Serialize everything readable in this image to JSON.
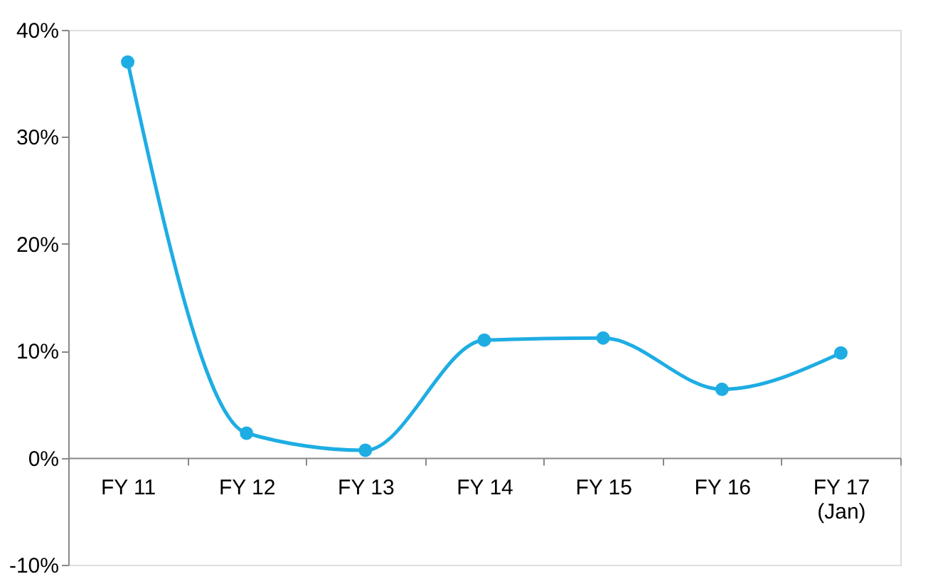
{
  "chart_data": {
    "type": "line",
    "categories": [
      "FY 11",
      "FY 12",
      "FY 13",
      "FY 14",
      "FY 15",
      "FY 16",
      "FY 17 (Jan)"
    ],
    "series": [
      {
        "color": "#1eade3",
        "values": [
          37,
          2.3,
          0.7,
          11,
          11.2,
          6.4,
          9.8
        ]
      }
    ],
    "ylim": [
      -10,
      40
    ],
    "yticks": [
      {
        "value": -10,
        "label": "-10%"
      },
      {
        "value": 0,
        "label": "0%"
      },
      {
        "value": 10,
        "label": "10%"
      },
      {
        "value": 20,
        "label": "20%"
      },
      {
        "value": 30,
        "label": "30%"
      },
      {
        "value": 40,
        "label": "40%"
      }
    ],
    "marker": "circle",
    "line_style": "solid",
    "grid": false
  }
}
